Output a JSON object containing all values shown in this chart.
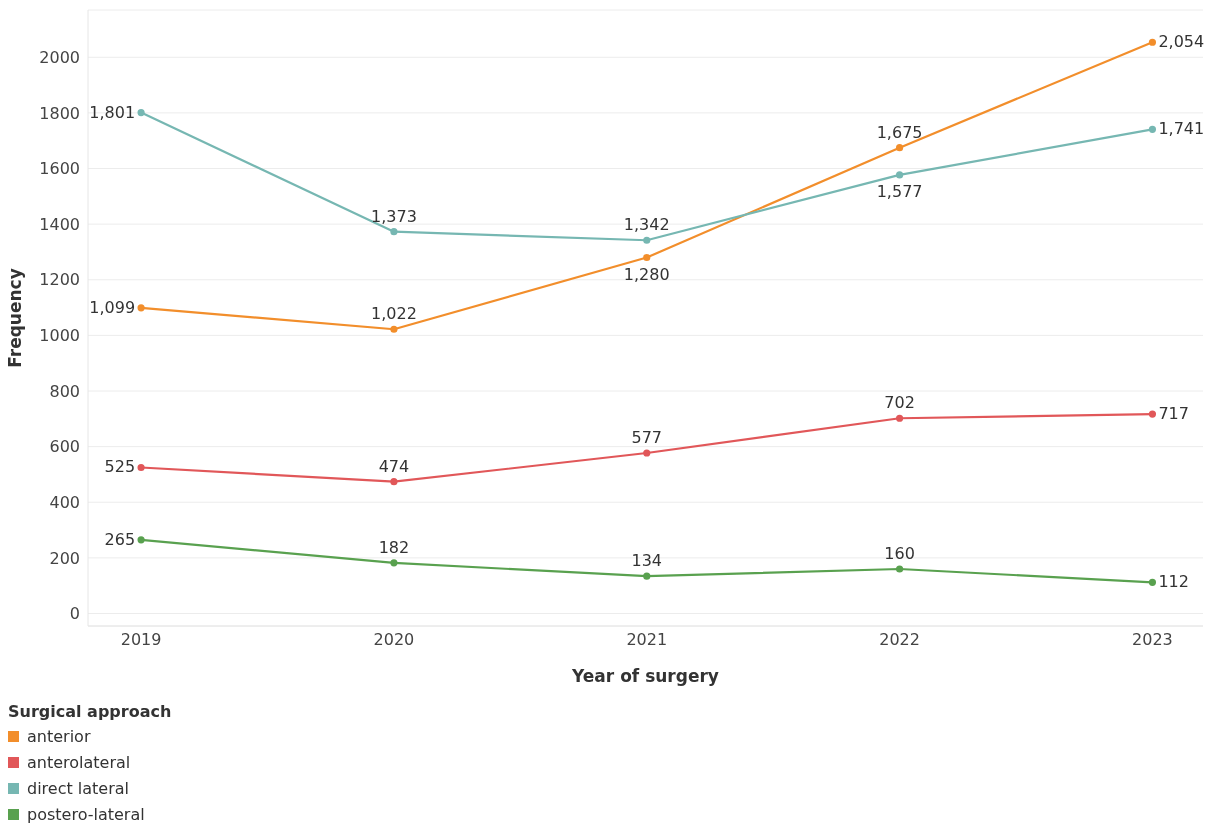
{
  "chart_data": {
    "type": "line",
    "xlabel": "Year of surgery",
    "ylabel": "Frequency",
    "legend_title": "Surgical approach",
    "categories": [
      "2019",
      "2020",
      "2021",
      "2022",
      "2023"
    ],
    "series": [
      {
        "name": "anterior",
        "color": "#f28e2b",
        "values": [
          1099,
          1022,
          1280,
          1675,
          2054
        ],
        "value_labels": [
          "1,099",
          "1,022",
          "1,280",
          "1,675",
          "2,054"
        ]
      },
      {
        "name": "anterolateral",
        "color": "#e15759",
        "values": [
          525,
          474,
          577,
          702,
          717
        ],
        "value_labels": [
          "525",
          "474",
          "577",
          "702",
          "717"
        ]
      },
      {
        "name": "direct lateral",
        "color": "#76b7b2",
        "values": [
          1801,
          1373,
          1342,
          1577,
          1741
        ],
        "value_labels": [
          "1,801",
          "1,373",
          "1,342",
          "1,577",
          "1,741"
        ]
      },
      {
        "name": "postero-lateral",
        "color": "#59a14f",
        "values": [
          265,
          182,
          134,
          160,
          112
        ],
        "value_labels": [
          "265",
          "182",
          "134",
          "160",
          "112"
        ]
      }
    ],
    "ylim": [
      -45,
      2170
    ],
    "yticks": [
      0,
      200,
      400,
      600,
      800,
      1000,
      1200,
      1400,
      1600,
      1800,
      2000
    ],
    "grid": "y",
    "legend": "bottom left",
    "marker": "circle",
    "line_style": "solid"
  }
}
